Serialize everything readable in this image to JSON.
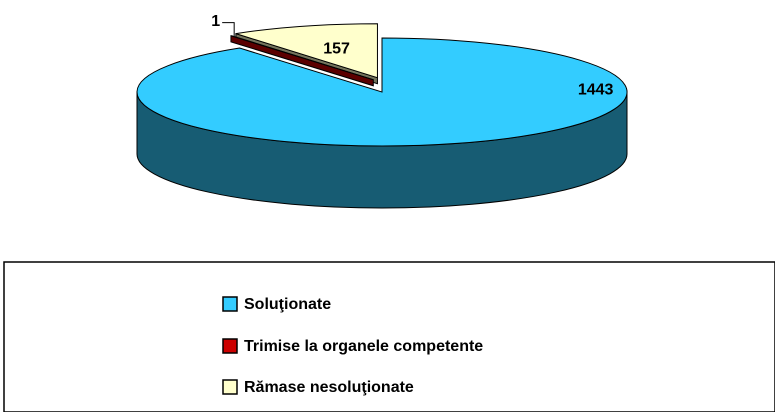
{
  "chart_data": {
    "type": "pie",
    "categories": [
      "Soluţionate",
      "Trimise la organele competente",
      "Rămase nesoluţionate"
    ],
    "values": [
      1443,
      1,
      157
    ],
    "colors": [
      "#33ccff",
      "#cc0000",
      "#ffffcc"
    ],
    "legend": "bottom"
  }
}
